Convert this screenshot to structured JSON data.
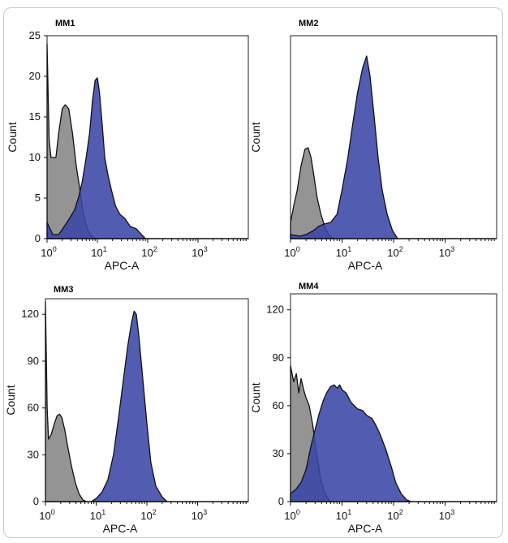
{
  "figure": {
    "colors": {
      "control": "#8e8e8e",
      "sample": "#3a46a6",
      "outline": "#111111"
    }
  },
  "chart_data": [
    {
      "type": "area",
      "title": "MM1",
      "xlabel": "APC-A",
      "ylabel": "Count",
      "xscale": "log",
      "xlim": [
        1,
        10000
      ],
      "ylim": [
        0,
        25
      ],
      "xticks": [
        {
          "v": 1,
          "m": "0"
        },
        {
          "v": 10,
          "m": "1"
        },
        {
          "v": 100,
          "m": "2"
        },
        {
          "v": 1000,
          "m": "3"
        }
      ],
      "yticks": [
        0,
        5,
        10,
        15,
        20,
        25
      ],
      "series": [
        {
          "role": "control",
          "points": [
            [
              1,
              24
            ],
            [
              1.1,
              12
            ],
            [
              1.2,
              10
            ],
            [
              1.35,
              10
            ],
            [
              1.5,
              10
            ],
            [
              1.7,
              13
            ],
            [
              2,
              16
            ],
            [
              2.3,
              16.5
            ],
            [
              2.7,
              16
            ],
            [
              3.2,
              13
            ],
            [
              3.8,
              9
            ],
            [
              4.5,
              6
            ],
            [
              5.3,
              3
            ],
            [
              6.3,
              1.2
            ],
            [
              7.5,
              0.4
            ],
            [
              9,
              0
            ]
          ]
        },
        {
          "role": "sample",
          "points": [
            [
              1,
              2
            ],
            [
              1.3,
              0.5
            ],
            [
              1.7,
              0.5
            ],
            [
              2.2,
              1.5
            ],
            [
              2.8,
              2.5
            ],
            [
              3.5,
              3.5
            ],
            [
              4.2,
              5
            ],
            [
              5,
              7
            ],
            [
              6,
              10
            ],
            [
              7,
              13
            ],
            [
              8,
              17
            ],
            [
              9,
              19.5
            ],
            [
              10,
              19.8
            ],
            [
              11,
              18
            ],
            [
              12.5,
              14
            ],
            [
              14,
              10
            ],
            [
              16,
              8
            ],
            [
              19,
              6
            ],
            [
              23,
              4
            ],
            [
              28,
              3
            ],
            [
              35,
              2.5
            ],
            [
              45,
              1.5
            ],
            [
              60,
              1.2
            ],
            [
              75,
              0.5
            ],
            [
              90,
              0
            ]
          ]
        }
      ]
    },
    {
      "type": "area",
      "title": "MM2",
      "xlabel": "APC-A",
      "ylabel": "Count",
      "xscale": "log",
      "xlim": [
        1,
        10000
      ],
      "ylim": [
        0,
        25
      ],
      "xticks": [
        {
          "v": 1,
          "m": "0"
        },
        {
          "v": 10,
          "m": "1"
        },
        {
          "v": 100,
          "m": "2"
        },
        {
          "v": 1000,
          "m": "3"
        }
      ],
      "yticks": [],
      "series": [
        {
          "role": "control",
          "points": [
            [
              1,
              2
            ],
            [
              1.15,
              4
            ],
            [
              1.35,
              6
            ],
            [
              1.6,
              9
            ],
            [
              1.9,
              11
            ],
            [
              2.2,
              11.2
            ],
            [
              2.5,
              10
            ],
            [
              2.8,
              8
            ],
            [
              3.3,
              5
            ],
            [
              3.9,
              3
            ],
            [
              4.6,
              1.5
            ],
            [
              5.5,
              0.5
            ],
            [
              7,
              0
            ]
          ]
        },
        {
          "role": "sample",
          "points": [
            [
              1,
              0.5
            ],
            [
              1.5,
              0.3
            ],
            [
              2,
              0.5
            ],
            [
              2.8,
              1
            ],
            [
              3.5,
              1.5
            ],
            [
              4.5,
              1.8
            ],
            [
              6,
              2
            ],
            [
              8,
              3
            ],
            [
              10,
              6
            ],
            [
              13,
              10
            ],
            [
              16,
              14
            ],
            [
              20,
              18
            ],
            [
              25,
              21
            ],
            [
              30,
              22.5
            ],
            [
              35,
              20
            ],
            [
              42,
              15
            ],
            [
              50,
              10
            ],
            [
              60,
              6
            ],
            [
              75,
              3
            ],
            [
              95,
              1
            ],
            [
              120,
              0
            ]
          ]
        }
      ]
    },
    {
      "type": "area",
      "title": "MM3",
      "xlabel": "APC-A",
      "ylabel": "Count",
      "xscale": "log",
      "xlim": [
        1,
        10000
      ],
      "ylim": [
        0,
        130
      ],
      "xticks": [
        {
          "v": 1,
          "m": "0"
        },
        {
          "v": 10,
          "m": "1"
        },
        {
          "v": 100,
          "m": "2"
        },
        {
          "v": 1000,
          "m": "3"
        }
      ],
      "yticks": [
        0,
        30,
        60,
        90,
        120
      ],
      "series": [
        {
          "role": "control",
          "points": [
            [
              1,
              128
            ],
            [
              1.08,
              60
            ],
            [
              1.15,
              40
            ],
            [
              1.3,
              43
            ],
            [
              1.5,
              50
            ],
            [
              1.7,
              55
            ],
            [
              1.9,
              56
            ],
            [
              2.1,
              54
            ],
            [
              2.4,
              46
            ],
            [
              2.8,
              34
            ],
            [
              3.3,
              22
            ],
            [
              3.9,
              12
            ],
            [
              4.6,
              5
            ],
            [
              5.5,
              1
            ],
            [
              6.5,
              0
            ]
          ]
        },
        {
          "role": "sample",
          "points": [
            [
              8,
              0
            ],
            [
              10,
              2
            ],
            [
              13,
              6
            ],
            [
              17,
              14
            ],
            [
              22,
              30
            ],
            [
              28,
              55
            ],
            [
              35,
              80
            ],
            [
              42,
              100
            ],
            [
              50,
              115
            ],
            [
              56,
              122
            ],
            [
              62,
              120
            ],
            [
              70,
              105
            ],
            [
              85,
              75
            ],
            [
              100,
              50
            ],
            [
              120,
              25
            ],
            [
              150,
              10
            ],
            [
              200,
              3
            ],
            [
              250,
              0
            ]
          ]
        }
      ]
    },
    {
      "type": "area",
      "title": "MM4",
      "xlabel": "APC-A",
      "ylabel": "Count",
      "xscale": "log",
      "xlim": [
        1,
        10000
      ],
      "ylim": [
        0,
        130
      ],
      "xticks": [
        {
          "v": 1,
          "m": "0"
        },
        {
          "v": 10,
          "m": "1"
        },
        {
          "v": 100,
          "m": "2"
        },
        {
          "v": 1000,
          "m": "3"
        }
      ],
      "yticks": [
        0,
        30,
        60,
        90,
        120
      ],
      "series": [
        {
          "role": "control",
          "points": [
            [
              1,
              85
            ],
            [
              1.15,
              75
            ],
            [
              1.3,
              80
            ],
            [
              1.45,
              68
            ],
            [
              1.6,
              77
            ],
            [
              1.8,
              70
            ],
            [
              2,
              65
            ],
            [
              2.3,
              60
            ],
            [
              2.7,
              48
            ],
            [
              3.2,
              30
            ],
            [
              3.8,
              15
            ],
            [
              4.5,
              6
            ],
            [
              5.5,
              1
            ],
            [
              6.5,
              0
            ]
          ]
        },
        {
          "role": "sample",
          "points": [
            [
              1,
              5
            ],
            [
              1.3,
              8
            ],
            [
              1.6,
              12
            ],
            [
              2,
              20
            ],
            [
              2.5,
              35
            ],
            [
              3,
              45
            ],
            [
              3.6,
              55
            ],
            [
              4.3,
              63
            ],
            [
              5,
              68
            ],
            [
              6,
              72
            ],
            [
              7,
              73
            ],
            [
              8,
              71
            ],
            [
              9,
              73
            ],
            [
              10,
              70
            ],
            [
              12,
              68
            ],
            [
              15,
              62
            ],
            [
              20,
              58
            ],
            [
              25,
              57
            ],
            [
              30,
              54
            ],
            [
              38,
              52
            ],
            [
              45,
              48
            ],
            [
              55,
              42
            ],
            [
              70,
              33
            ],
            [
              90,
              22
            ],
            [
              110,
              12
            ],
            [
              140,
              5
            ],
            [
              180,
              1
            ],
            [
              220,
              0
            ]
          ]
        }
      ]
    }
  ]
}
